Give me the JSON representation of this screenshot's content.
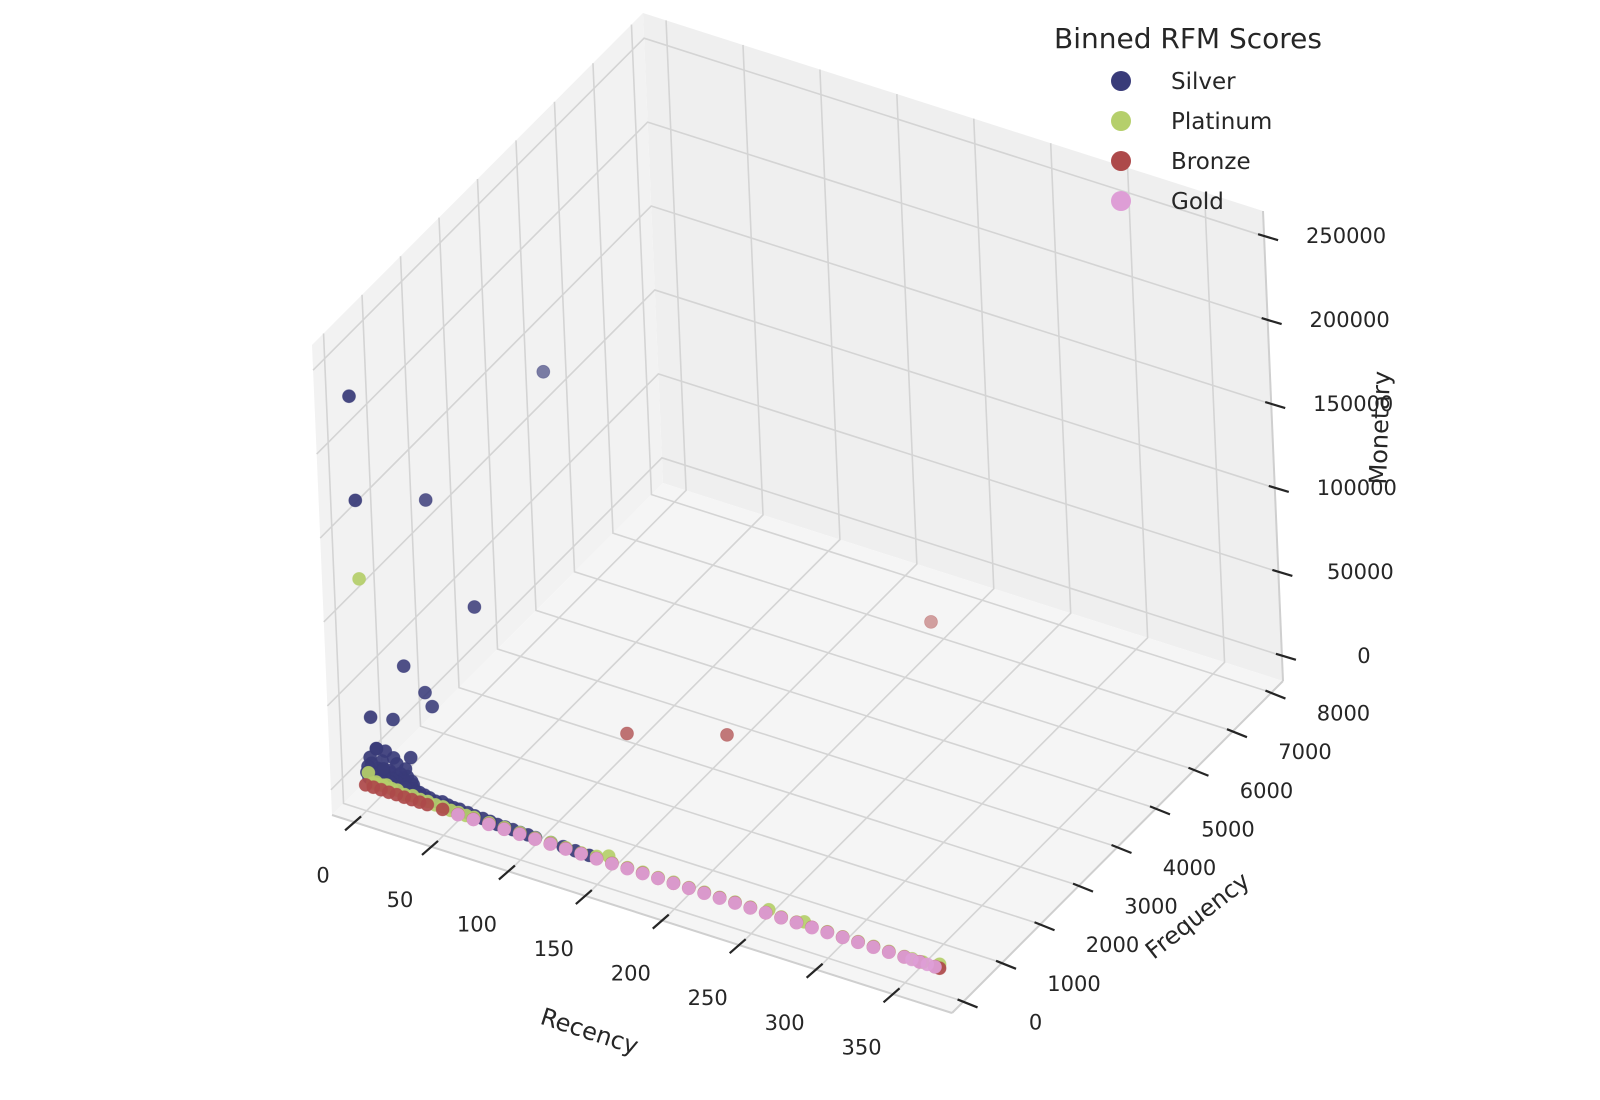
{
  "chart_data": {
    "type": "scatter",
    "projection": "3d",
    "xlabel": "Recency",
    "ylabel": "Frequency",
    "zlabel": "Monetary",
    "xlim": [
      -15,
      388
    ],
    "ylim": [
      -300,
      8300
    ],
    "zlim": [
      -15000,
      265000
    ],
    "xticks": [
      0,
      50,
      100,
      150,
      200,
      250,
      300,
      350
    ],
    "yticks": [
      0,
      1000,
      2000,
      3000,
      4000,
      5000,
      6000,
      7000,
      8000
    ],
    "zticks": [
      0,
      50000,
      100000,
      150000,
      200000,
      250000
    ],
    "xtick_labels": [
      "0",
      "50",
      "100",
      "150",
      "200",
      "250",
      "300",
      "350"
    ],
    "ytick_labels": [
      "0",
      "1000",
      "2000",
      "3000",
      "4000",
      "5000",
      "6000",
      "7000",
      "8000"
    ],
    "ztick_labels": [
      "0",
      "50000",
      "100000",
      "150000",
      "200000",
      "250000"
    ],
    "grid": true,
    "legend": {
      "title": "Binned RFM Scores",
      "placement": "top-right",
      "entries": [
        {
          "label": "Silver",
          "color": "#393b79"
        },
        {
          "label": "Platinum",
          "color": "#b5cf6b"
        },
        {
          "label": "Bronze",
          "color": "#ad494a"
        },
        {
          "label": "Gold",
          "color": "#de9ed6"
        }
      ]
    },
    "series": [
      {
        "name": "Silver",
        "color": "#393b79",
        "points": [
          [
            0,
            0,
            232000
          ],
          [
            1,
            10,
            170000
          ],
          [
            8,
            1500,
            138000
          ],
          [
            15,
            4300,
            152000
          ],
          [
            45,
            1200,
            92000
          ],
          [
            10,
            700,
            58000
          ],
          [
            5,
            10,
            42000
          ],
          [
            12,
            300,
            36000
          ],
          [
            18,
            900,
            40000
          ],
          [
            25,
            800,
            36000
          ],
          [
            8,
            10,
            24000
          ],
          [
            30,
            20,
            25000
          ],
          [
            3,
            30,
            17000
          ],
          [
            6,
            80,
            22000
          ],
          [
            10,
            150,
            20000
          ],
          [
            14,
            200,
            16000
          ],
          [
            2,
            5,
            12000
          ],
          [
            4,
            20,
            14000
          ],
          [
            7,
            60,
            11000
          ],
          [
            9,
            100,
            15000
          ],
          [
            11,
            50,
            12000
          ],
          [
            13,
            120,
            10000
          ],
          [
            16,
            200,
            13000
          ],
          [
            19,
            160,
            9000
          ],
          [
            21,
            220,
            11000
          ],
          [
            23,
            180,
            8000
          ],
          [
            1,
            10,
            8000
          ],
          [
            3,
            40,
            9000
          ],
          [
            5,
            70,
            7000
          ],
          [
            8,
            130,
            8500
          ],
          [
            10,
            90,
            6500
          ],
          [
            12,
            160,
            7500
          ],
          [
            15,
            110,
            6000
          ],
          [
            17,
            140,
            7000
          ],
          [
            20,
            190,
            6000
          ],
          [
            22,
            150,
            5500
          ],
          [
            25,
            210,
            5000
          ],
          [
            27,
            170,
            4500
          ],
          [
            2,
            20,
            5000
          ],
          [
            4,
            50,
            4000
          ],
          [
            6,
            90,
            5500
          ],
          [
            9,
            60,
            4500
          ],
          [
            11,
            140,
            5000
          ],
          [
            14,
            100,
            4000
          ],
          [
            18,
            120,
            4500
          ],
          [
            24,
            80,
            4000
          ],
          [
            28,
            130,
            3500
          ],
          [
            30,
            110,
            3000
          ],
          [
            33,
            90,
            3500
          ],
          [
            36,
            100,
            2500
          ],
          [
            40,
            70,
            2800
          ],
          [
            44,
            60,
            2200
          ],
          [
            48,
            80,
            2500
          ],
          [
            52,
            70,
            2000
          ],
          [
            56,
            60,
            1800
          ],
          [
            60,
            50,
            2300
          ],
          [
            65,
            60,
            1500
          ],
          [
            70,
            40,
            1500
          ],
          [
            75,
            50,
            1200
          ],
          [
            80,
            40,
            1200
          ],
          [
            85,
            30,
            1000
          ],
          [
            90,
            30,
            1000
          ],
          [
            95,
            30,
            900
          ],
          [
            100,
            20,
            900
          ],
          [
            105,
            25,
            800
          ],
          [
            110,
            20,
            700
          ],
          [
            120,
            20,
            700
          ],
          [
            128,
            20,
            600
          ],
          [
            136,
            15,
            600
          ],
          [
            145,
            15,
            500
          ]
        ]
      },
      {
        "name": "Platinum",
        "color": "#b5cf6b",
        "points": [
          [
            1,
            20,
            123000
          ],
          [
            2,
            10,
            8000
          ],
          [
            4,
            30,
            2000
          ],
          [
            6,
            40,
            3000
          ],
          [
            8,
            20,
            2500
          ],
          [
            10,
            50,
            2000
          ],
          [
            13,
            30,
            3500
          ],
          [
            16,
            40,
            2000
          ],
          [
            20,
            30,
            2500
          ],
          [
            25,
            20,
            1500
          ],
          [
            30,
            30,
            2000
          ],
          [
            35,
            20,
            1500
          ],
          [
            40,
            20,
            1800
          ],
          [
            45,
            20,
            1200
          ],
          [
            50,
            20,
            1500
          ],
          [
            55,
            15,
            1000
          ],
          [
            60,
            15,
            1200
          ],
          [
            65,
            15,
            900
          ],
          [
            70,
            20,
            1100
          ],
          [
            80,
            15,
            900
          ],
          [
            90,
            15,
            1000
          ],
          [
            100,
            15,
            800
          ],
          [
            110,
            10,
            700
          ],
          [
            120,
            15,
            900
          ],
          [
            130,
            10,
            800
          ],
          [
            140,
            10,
            600
          ],
          [
            150,
            10,
            1500
          ],
          [
            158,
            10,
            4000
          ],
          [
            160,
            10,
            700
          ],
          [
            170,
            10,
            600
          ],
          [
            180,
            10,
            800
          ],
          [
            190,
            10,
            600
          ],
          [
            200,
            10,
            700
          ],
          [
            210,
            10,
            500
          ],
          [
            220,
            10,
            600
          ],
          [
            230,
            10,
            500
          ],
          [
            240,
            10,
            600
          ],
          [
            250,
            10,
            500
          ],
          [
            262,
            10,
            2500
          ],
          [
            270,
            10,
            500
          ],
          [
            280,
            10,
            400
          ],
          [
            285,
            10,
            2000
          ],
          [
            300,
            10,
            500
          ],
          [
            310,
            10,
            400
          ],
          [
            320,
            10,
            500
          ],
          [
            330,
            10,
            600
          ],
          [
            340,
            10,
            500
          ],
          [
            350,
            10,
            400
          ],
          [
            355,
            10,
            500
          ],
          [
            362,
            10,
            600
          ],
          [
            373,
            10,
            2500
          ]
        ]
      },
      {
        "name": "Bronze",
        "color": "#ad494a",
        "points": [
          [
            0,
            5,
            300
          ],
          [
            5,
            5,
            400
          ],
          [
            10,
            5,
            350
          ],
          [
            15,
            5,
            300
          ],
          [
            20,
            5,
            400
          ],
          [
            25,
            5,
            300
          ],
          [
            30,
            5,
            350
          ],
          [
            35,
            5,
            300
          ],
          [
            40,
            5,
            300
          ],
          [
            50,
            5,
            350
          ],
          [
            60,
            5,
            300
          ],
          [
            70,
            5,
            300
          ],
          [
            80,
            5,
            350
          ],
          [
            90,
            5,
            300
          ],
          [
            100,
            5,
            300
          ],
          [
            110,
            5,
            300
          ],
          [
            120,
            5,
            300
          ],
          [
            130,
            5,
            300
          ],
          [
            140,
            5,
            300
          ],
          [
            150,
            5,
            300
          ],
          [
            160,
            5,
            300
          ],
          [
            170,
            5,
            300
          ],
          [
            180,
            5,
            300
          ],
          [
            190,
            5,
            300
          ],
          [
            200,
            5,
            300
          ],
          [
            210,
            5,
            300
          ],
          [
            220,
            5,
            300
          ],
          [
            230,
            5,
            300
          ],
          [
            240,
            5,
            300
          ],
          [
            250,
            5,
            300
          ],
          [
            260,
            5,
            300
          ],
          [
            270,
            5,
            300
          ],
          [
            280,
            5,
            300
          ],
          [
            290,
            5,
            300
          ],
          [
            300,
            5,
            300
          ],
          [
            310,
            5,
            300
          ],
          [
            320,
            5,
            300
          ],
          [
            330,
            5,
            300
          ],
          [
            340,
            5,
            300
          ],
          [
            350,
            5,
            300
          ],
          [
            360,
            5,
            300
          ],
          [
            370,
            5,
            300
          ],
          [
            373,
            5,
            300
          ],
          [
            105,
            2600,
            2000
          ],
          [
            155,
            3200,
            2000
          ],
          [
            200,
            6700,
            2000
          ]
        ]
      },
      {
        "name": "Gold",
        "color": "#de9ed6",
        "points": [
          [
            60,
            5,
            200
          ],
          [
            70,
            5,
            200
          ],
          [
            80,
            5,
            200
          ],
          [
            90,
            5,
            200
          ],
          [
            100,
            5,
            200
          ],
          [
            110,
            5,
            200
          ],
          [
            120,
            5,
            200
          ],
          [
            130,
            5,
            200
          ],
          [
            140,
            5,
            200
          ],
          [
            150,
            5,
            200
          ],
          [
            160,
            5,
            200
          ],
          [
            170,
            5,
            200
          ],
          [
            180,
            5,
            200
          ],
          [
            190,
            5,
            200
          ],
          [
            200,
            5,
            200
          ],
          [
            210,
            5,
            200
          ],
          [
            220,
            5,
            200
          ],
          [
            230,
            5,
            200
          ],
          [
            240,
            5,
            200
          ],
          [
            250,
            5,
            200
          ],
          [
            260,
            5,
            200
          ],
          [
            270,
            5,
            200
          ],
          [
            280,
            5,
            200
          ],
          [
            290,
            5,
            200
          ],
          [
            300,
            5,
            200
          ],
          [
            310,
            5,
            200
          ],
          [
            320,
            5,
            200
          ],
          [
            330,
            5,
            200
          ],
          [
            340,
            5,
            200
          ],
          [
            350,
            5,
            200
          ],
          [
            355,
            5,
            200
          ],
          [
            360,
            5,
            200
          ],
          [
            365,
            5,
            200
          ],
          [
            370,
            5,
            200
          ]
        ]
      }
    ]
  }
}
